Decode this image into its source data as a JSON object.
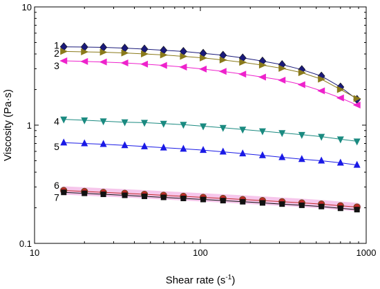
{
  "chart_data": {
    "type": "scatter",
    "x_scale": "log",
    "y_scale": "log",
    "xlim": [
      10,
      1000
    ],
    "ylim": [
      0.1,
      10
    ],
    "xlabel": "Shear rate (s",
    "xlabel_sup": "-1",
    "xlabel_end": ")",
    "ylabel": "Viscosity (Pa·s)",
    "x_ticks": [
      {
        "v": 10,
        "label": "10"
      },
      {
        "v": 100,
        "label": "100"
      },
      {
        "v": 1000,
        "label": "1000"
      }
    ],
    "y_ticks": [
      {
        "v": 0.1,
        "label": "0.1"
      },
      {
        "v": 1,
        "label": "1"
      },
      {
        "v": 10,
        "label": "10"
      }
    ],
    "x": [
      15,
      20,
      26,
      35,
      46,
      60,
      79,
      104,
      137,
      180,
      237,
      311,
      409,
      537,
      700,
      880
    ],
    "series": [
      {
        "name": "1",
        "marker": "diamond",
        "color": "#1a1a7a",
        "values": [
          4.6,
          4.58,
          4.55,
          4.48,
          4.4,
          4.3,
          4.2,
          4.05,
          3.9,
          3.7,
          3.48,
          3.25,
          2.95,
          2.6,
          2.1,
          1.65
        ]
      },
      {
        "name": "2",
        "marker": "triangle-right",
        "color": "#8a7a1a",
        "values": [
          4.2,
          4.17,
          4.14,
          4.08,
          4.0,
          3.92,
          3.82,
          3.7,
          3.56,
          3.4,
          3.22,
          3.02,
          2.78,
          2.45,
          2.0,
          1.68
        ]
      },
      {
        "name": "3",
        "marker": "triangle-left",
        "color": "#ee22cc",
        "values": [
          3.5,
          3.46,
          3.42,
          3.36,
          3.28,
          3.2,
          3.1,
          2.98,
          2.85,
          2.7,
          2.55,
          2.4,
          2.2,
          1.95,
          1.7,
          1.48
        ]
      },
      {
        "name": "4",
        "marker": "triangle-down",
        "color": "#1a8a80",
        "values": [
          1.12,
          1.1,
          1.08,
          1.06,
          1.05,
          1.03,
          1.01,
          0.98,
          0.95,
          0.92,
          0.89,
          0.86,
          0.83,
          0.8,
          0.76,
          0.73
        ]
      },
      {
        "name": "5",
        "marker": "triangle-up",
        "color": "#1a1ae6",
        "values": [
          0.71,
          0.7,
          0.69,
          0.675,
          0.66,
          0.645,
          0.63,
          0.615,
          0.595,
          0.575,
          0.555,
          0.535,
          0.515,
          0.5,
          0.48,
          0.46
        ]
      },
      {
        "name": "6",
        "marker": "circle",
        "color": "#c22a2a",
        "halo": "#f4b8e6",
        "values": [
          0.28,
          0.275,
          0.27,
          0.265,
          0.26,
          0.255,
          0.25,
          0.245,
          0.24,
          0.235,
          0.23,
          0.225,
          0.22,
          0.215,
          0.208,
          0.203
        ]
      },
      {
        "name": "7",
        "marker": "square",
        "color": "#111111",
        "values": [
          0.27,
          0.265,
          0.26,
          0.255,
          0.25,
          0.245,
          0.24,
          0.235,
          0.23,
          0.225,
          0.22,
          0.215,
          0.21,
          0.205,
          0.198,
          0.193
        ]
      }
    ],
    "series_labels": [
      {
        "text": "1",
        "x": 13.6,
        "y": 4.75
      },
      {
        "text": "2",
        "x": 13.6,
        "y": 4.05
      },
      {
        "text": "3",
        "x": 13.6,
        "y": 3.18
      },
      {
        "text": "4",
        "x": 13.6,
        "y": 1.08
      },
      {
        "text": "5",
        "x": 13.6,
        "y": 0.66
      },
      {
        "text": "6",
        "x": 13.6,
        "y": 0.31
      },
      {
        "text": "7",
        "x": 13.6,
        "y": 0.245
      }
    ]
  }
}
